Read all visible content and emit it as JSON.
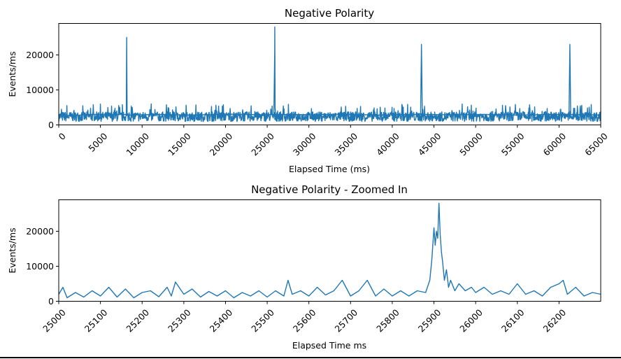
{
  "chart_data": [
    {
      "type": "line",
      "title": "Negative Polarity",
      "xlabel": "Elapsed Time (ms)",
      "ylabel": "Events/ms",
      "xlim": [
        0,
        65000
      ],
      "ylim": [
        0,
        29000
      ],
      "xticks": [
        0,
        5000,
        10000,
        15000,
        20000,
        25000,
        30000,
        35000,
        40000,
        45000,
        50000,
        55000,
        60000,
        65000
      ],
      "yticks": [
        0,
        10000,
        20000
      ],
      "xtick_rotation": 45,
      "grid": false,
      "series": [
        {
          "color": "#1f77b4",
          "baseline_range": [
            1000,
            6000
          ],
          "x": [
            0,
            4000,
            8100,
            8150,
            8200,
            8300,
            12000,
            16000,
            20000,
            24000,
            25800,
            25900,
            25910,
            25950,
            26000,
            30000,
            34000,
            38000,
            42000,
            43400,
            43500,
            43600,
            47000,
            51000,
            55000,
            59000,
            61200,
            61300,
            61400,
            65000
          ],
          "y": [
            2500,
            3000,
            3000,
            25000,
            3200,
            2800,
            3000,
            2800,
            3100,
            2900,
            3000,
            21000,
            28000,
            5000,
            3000,
            2900,
            3100,
            2800,
            3000,
            3000,
            23000,
            3000,
            2900,
            3000,
            2800,
            3000,
            3000,
            23000,
            3000,
            2800
          ]
        }
      ]
    },
    {
      "type": "line",
      "title": "Negative Polarity - Zoomed In",
      "xlabel": "Elapsed Time ms",
      "ylabel": "Events/ms",
      "xlim": [
        25000,
        26300
      ],
      "ylim": [
        0,
        29000
      ],
      "xticks": [
        25000,
        25100,
        25200,
        25300,
        25400,
        25500,
        25600,
        25700,
        25800,
        25900,
        26000,
        26100,
        26200
      ],
      "yticks": [
        0,
        10000,
        20000
      ],
      "xtick_rotation": 45,
      "grid": false,
      "series": [
        {
          "color": "#1f77b4",
          "x": [
            25000,
            25010,
            25020,
            25040,
            25060,
            25080,
            25100,
            25120,
            25140,
            25160,
            25180,
            25200,
            25220,
            25240,
            25260,
            25270,
            25280,
            25300,
            25320,
            25340,
            25360,
            25380,
            25400,
            25420,
            25440,
            25460,
            25480,
            25500,
            25520,
            25540,
            25550,
            25560,
            25580,
            25600,
            25620,
            25640,
            25660,
            25680,
            25700,
            25720,
            25740,
            25760,
            25780,
            25800,
            25820,
            25840,
            25860,
            25880,
            25890,
            25895,
            25900,
            25903,
            25906,
            25909,
            25912,
            25915,
            25918,
            25921,
            25925,
            25930,
            25935,
            25940,
            25950,
            25960,
            25975,
            25990,
            26000,
            26020,
            26040,
            26060,
            26080,
            26100,
            26120,
            26140,
            26160,
            26180,
            26200,
            26210,
            26220,
            26240,
            26260,
            26280,
            26300
          ],
          "y": [
            2000,
            4000,
            1000,
            2500,
            1200,
            3000,
            1500,
            4000,
            1200,
            3500,
            1000,
            2500,
            3000,
            1300,
            4000,
            1500,
            5500,
            2000,
            3500,
            1200,
            2800,
            1500,
            3000,
            1000,
            2500,
            1500,
            3000,
            1200,
            3000,
            1500,
            6000,
            2000,
            3000,
            1500,
            4000,
            1800,
            3000,
            6000,
            1500,
            3000,
            6000,
            1500,
            3500,
            1500,
            3000,
            1500,
            3000,
            2500,
            6000,
            12000,
            21000,
            16000,
            20000,
            18000,
            28000,
            19000,
            14000,
            11000,
            6000,
            9000,
            4000,
            6000,
            3000,
            5000,
            3000,
            4000,
            2500,
            4000,
            2000,
            3000,
            2000,
            5000,
            2000,
            3000,
            1500,
            4000,
            5000,
            6000,
            2000,
            4000,
            1500,
            2500,
            2000
          ]
        }
      ]
    }
  ]
}
